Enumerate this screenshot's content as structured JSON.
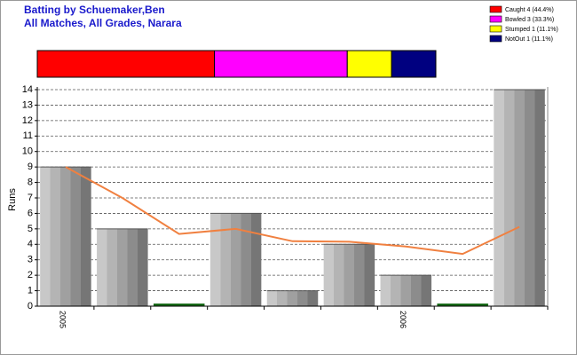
{
  "title": [
    "Batting by Schuemaker,Ben",
    "All Matches, All Grades, Narara"
  ],
  "chart_data": [
    {
      "type": "stacked-bar",
      "categories": [
        "Caught 4 (44.4%)",
        "Bowled 3 (33.3%)",
        "Stumped 1 (11.1%)",
        "NotOut 1 (11.1%)"
      ],
      "values": [
        4,
        3,
        1,
        1
      ],
      "colors": [
        "#ff0000",
        "#ff00ff",
        "#ffff00",
        "#000080"
      ]
    },
    {
      "type": "bar",
      "ylabel": "Runs",
      "categories": [
        "2005",
        null,
        null,
        null,
        null,
        null,
        "2006",
        null,
        null
      ],
      "series": [
        {
          "color": "#999999",
          "zero_color": "#1a6b1a",
          "values": [
            9,
            5,
            0,
            6,
            1,
            4,
            2,
            0,
            14
          ]
        },
        {
          "type": "line",
          "color": "#f08040",
          "values": [
            9,
            7,
            4.67,
            5,
            4.2,
            4.17,
            3.86,
            3.38,
            5.13
          ]
        }
      ],
      "ylim": [
        0,
        14
      ],
      "yticks": [
        0,
        1,
        2,
        3,
        4,
        5,
        6,
        7,
        8,
        9,
        10,
        11,
        12,
        13,
        14
      ],
      "grid": true
    }
  ]
}
